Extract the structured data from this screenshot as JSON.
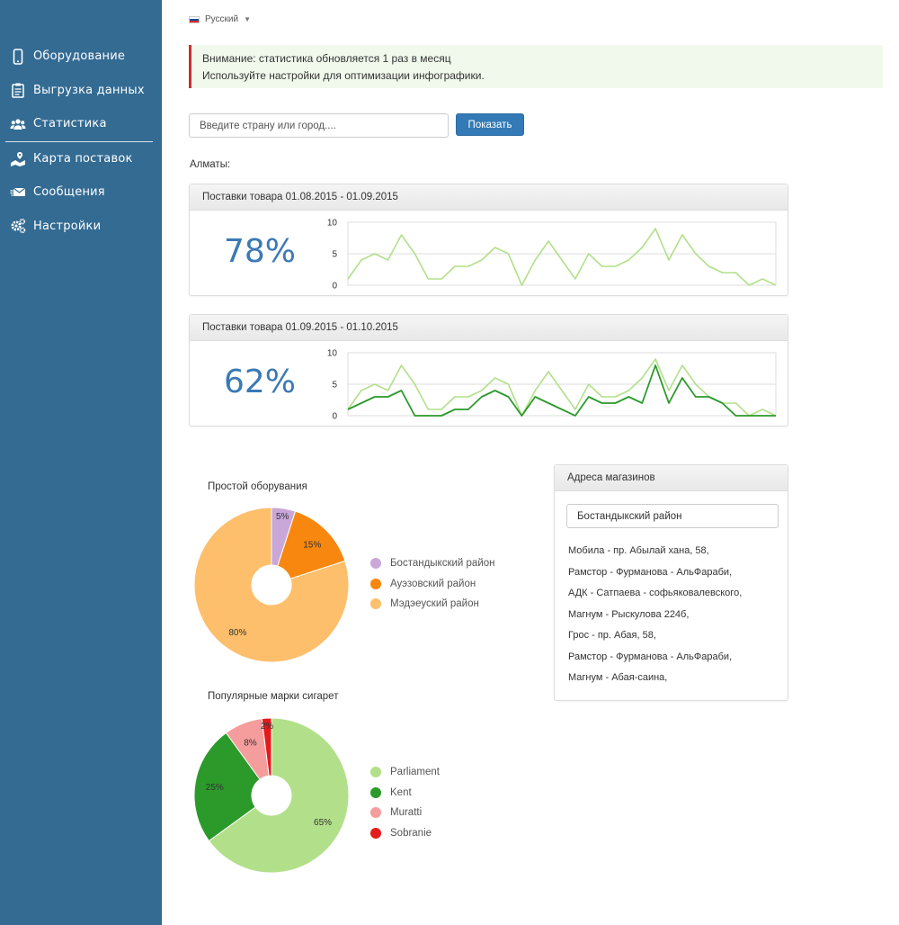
{
  "sidebar": {
    "items": [
      {
        "label": "Оборудование",
        "icon": "phone-icon"
      },
      {
        "label": "Выгрузка данных",
        "icon": "clipboard-icon"
      },
      {
        "label": "Статистика",
        "icon": "users-icon"
      },
      {
        "label": "Карта поставок",
        "icon": "map-truck-icon"
      },
      {
        "label": "Сообщения",
        "icon": "envelopes-icon"
      },
      {
        "label": "Настройки",
        "icon": "gears-icon"
      }
    ]
  },
  "language": {
    "label": "Русский"
  },
  "alert": {
    "line1": "Внимание: статистика обновляется 1 раз в месяц",
    "line2": "Используйте настройки для оптимизации инфографики."
  },
  "search": {
    "placeholder": "Введите страну или город....",
    "button_label": "Показать"
  },
  "city_label": "Алматы:",
  "supply_panels": [
    {
      "title": "Поставки товара  01.08.2015 - 01.09.2015",
      "percent": "78%"
    },
    {
      "title": "Поставки товара  01.09.2015 - 01.10.2015",
      "percent": "62%"
    }
  ],
  "addresses": {
    "title": "Адреса магазинов",
    "district_value": "Бостандыкский район",
    "items": [
      "Мобила - пр. Абылай хана, 58,",
      "Рамстор - Фурманова - АльФараби,",
      "АДК - Сатпаева - софьяковалевского,",
      "Магнум - Рыскулова 224б,",
      "Грос - пр. Абая, 58,",
      "Рамстор - Фурманова - АльФараби,",
      "Магнум - Абая-саина,"
    ]
  },
  "colors": {
    "sidebar": "#336b93",
    "accent": "#337ab7",
    "light_green": "#b2e08a",
    "dark_green": "#2b9a2b"
  },
  "chart_data": [
    {
      "type": "line",
      "ylim": [
        0,
        10
      ],
      "yticks": [
        "0",
        "5",
        "10"
      ],
      "series": [
        {
          "values": [
            1,
            4,
            5,
            4,
            8,
            5,
            1,
            1,
            3,
            3,
            4,
            6,
            5,
            0,
            4,
            7,
            4,
            1,
            5,
            3,
            3,
            4,
            6,
            9,
            4,
            8,
            5,
            3,
            2,
            2,
            0,
            1,
            0
          ]
        }
      ]
    },
    {
      "type": "line",
      "ylim": [
        0,
        10
      ],
      "yticks": [
        "0",
        "5",
        "10"
      ],
      "series": [
        {
          "values": [
            1,
            4,
            5,
            4,
            8,
            5,
            1,
            1,
            3,
            3,
            4,
            6,
            5,
            0,
            4,
            7,
            4,
            1,
            5,
            3,
            3,
            4,
            6,
            9,
            4,
            8,
            5,
            3,
            2,
            2,
            0,
            1,
            0
          ]
        },
        {
          "values": [
            1,
            2,
            3,
            3,
            4,
            0,
            0,
            0,
            1,
            1,
            3,
            4,
            3,
            0,
            3,
            2,
            1,
            0,
            3,
            2,
            2,
            3,
            2,
            8,
            2,
            6,
            3,
            3,
            2,
            0,
            0,
            0,
            0
          ]
        }
      ]
    },
    {
      "type": "pie",
      "title": "Простой оборувания",
      "slices": [
        {
          "name": "Бостандыкский район",
          "value": 5,
          "label": "5%",
          "color": "#c9a7d8"
        },
        {
          "name": "Ауэзовский район",
          "value": 15,
          "label": "15%",
          "color": "#f7870e"
        },
        {
          "name": "Мэдэеуский район",
          "value": 80,
          "label": "80%",
          "color": "#fdbf6b"
        }
      ]
    },
    {
      "type": "pie",
      "title": "Популярные марки сигарет",
      "slices": [
        {
          "name": "Parliament",
          "value": 65,
          "label": "65%",
          "color": "#b2e08a"
        },
        {
          "name": "Kent",
          "value": 25,
          "label": "25%",
          "color": "#2b9a2b"
        },
        {
          "name": "Muratti",
          "value": 8,
          "label": "8%",
          "color": "#f59c9c"
        },
        {
          "name": "Sobranie",
          "value": 2,
          "label": "2%",
          "color": "#e41a1c"
        }
      ]
    }
  ]
}
